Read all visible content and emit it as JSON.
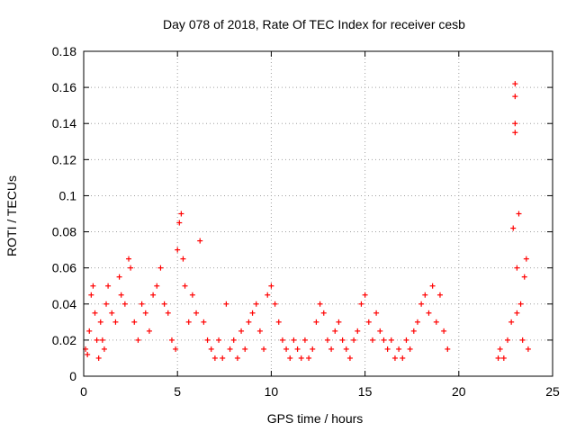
{
  "chart_data": {
    "type": "scatter",
    "title": "Day 078 of 2018, Rate Of TEC Index for receiver cesb",
    "xlabel": "GPS time / hours",
    "ylabel": "ROTI / TECUs",
    "xlim": [
      0,
      25
    ],
    "ylim": [
      0,
      0.18
    ],
    "xticks": [
      0,
      5,
      10,
      15,
      20,
      25
    ],
    "yticks": [
      0,
      0.02,
      0.04,
      0.06,
      0.08,
      0.1,
      0.12,
      0.14,
      0.16,
      0.18
    ],
    "xtick_labels": [
      "0",
      "5",
      "10",
      "15",
      "20",
      "25"
    ],
    "ytick_labels": [
      "0",
      "0.02",
      "0.04",
      "0.06",
      "0.08",
      "0.1",
      "0.12",
      "0.14",
      "0.16",
      "0.18"
    ],
    "grid": true,
    "marker": "+",
    "color": "#ff0000",
    "series": [
      {
        "name": "ROTI",
        "points": [
          [
            0.1,
            0.015
          ],
          [
            0.2,
            0.012
          ],
          [
            0.3,
            0.025
          ],
          [
            0.4,
            0.045
          ],
          [
            0.5,
            0.05
          ],
          [
            0.6,
            0.035
          ],
          [
            0.7,
            0.02
          ],
          [
            0.8,
            0.01
          ],
          [
            0.9,
            0.03
          ],
          [
            1.0,
            0.02
          ],
          [
            1.1,
            0.015
          ],
          [
            1.2,
            0.04
          ],
          [
            1.3,
            0.05
          ],
          [
            1.5,
            0.035
          ],
          [
            1.7,
            0.03
          ],
          [
            1.9,
            0.055
          ],
          [
            2.0,
            0.045
          ],
          [
            2.2,
            0.04
          ],
          [
            2.4,
            0.065
          ],
          [
            2.5,
            0.06
          ],
          [
            2.7,
            0.03
          ],
          [
            2.9,
            0.02
          ],
          [
            3.1,
            0.04
          ],
          [
            3.3,
            0.035
          ],
          [
            3.5,
            0.025
          ],
          [
            3.7,
            0.045
          ],
          [
            3.9,
            0.05
          ],
          [
            4.1,
            0.06
          ],
          [
            4.3,
            0.04
          ],
          [
            4.5,
            0.035
          ],
          [
            4.7,
            0.02
          ],
          [
            4.9,
            0.015
          ],
          [
            5.0,
            0.07
          ],
          [
            5.1,
            0.085
          ],
          [
            5.2,
            0.09
          ],
          [
            5.3,
            0.065
          ],
          [
            5.4,
            0.05
          ],
          [
            5.6,
            0.03
          ],
          [
            5.8,
            0.045
          ],
          [
            6.0,
            0.035
          ],
          [
            6.2,
            0.075
          ],
          [
            6.4,
            0.03
          ],
          [
            6.6,
            0.02
          ],
          [
            6.8,
            0.015
          ],
          [
            7.0,
            0.01
          ],
          [
            7.2,
            0.02
          ],
          [
            7.4,
            0.01
          ],
          [
            7.6,
            0.04
          ],
          [
            7.8,
            0.015
          ],
          [
            8.0,
            0.02
          ],
          [
            8.2,
            0.01
          ],
          [
            8.4,
            0.025
          ],
          [
            8.6,
            0.015
          ],
          [
            8.8,
            0.03
          ],
          [
            9.0,
            0.035
          ],
          [
            9.2,
            0.04
          ],
          [
            9.4,
            0.025
          ],
          [
            9.6,
            0.015
          ],
          [
            9.8,
            0.045
          ],
          [
            10.0,
            0.05
          ],
          [
            10.2,
            0.04
          ],
          [
            10.4,
            0.03
          ],
          [
            10.6,
            0.02
          ],
          [
            10.8,
            0.015
          ],
          [
            11.0,
            0.01
          ],
          [
            11.2,
            0.02
          ],
          [
            11.4,
            0.015
          ],
          [
            11.6,
            0.01
          ],
          [
            11.8,
            0.02
          ],
          [
            12.0,
            0.01
          ],
          [
            12.2,
            0.015
          ],
          [
            12.4,
            0.03
          ],
          [
            12.6,
            0.04
          ],
          [
            12.8,
            0.035
          ],
          [
            13.0,
            0.02
          ],
          [
            13.2,
            0.015
          ],
          [
            13.4,
            0.025
          ],
          [
            13.6,
            0.03
          ],
          [
            13.8,
            0.02
          ],
          [
            14.0,
            0.015
          ],
          [
            14.2,
            0.01
          ],
          [
            14.4,
            0.02
          ],
          [
            14.6,
            0.025
          ],
          [
            14.8,
            0.04
          ],
          [
            15.0,
            0.045
          ],
          [
            15.2,
            0.03
          ],
          [
            15.4,
            0.02
          ],
          [
            15.6,
            0.035
          ],
          [
            15.8,
            0.025
          ],
          [
            16.0,
            0.02
          ],
          [
            16.2,
            0.015
          ],
          [
            16.4,
            0.02
          ],
          [
            16.6,
            0.01
          ],
          [
            16.8,
            0.015
          ],
          [
            17.0,
            0.01
          ],
          [
            17.2,
            0.02
          ],
          [
            17.4,
            0.015
          ],
          [
            17.6,
            0.025
          ],
          [
            17.8,
            0.03
          ],
          [
            18.0,
            0.04
          ],
          [
            18.2,
            0.045
          ],
          [
            18.4,
            0.035
          ],
          [
            18.6,
            0.05
          ],
          [
            18.8,
            0.03
          ],
          [
            19.0,
            0.045
          ],
          [
            19.2,
            0.025
          ],
          [
            19.4,
            0.015
          ],
          [
            22.1,
            0.01
          ],
          [
            22.2,
            0.015
          ],
          [
            22.4,
            0.01
          ],
          [
            22.6,
            0.02
          ],
          [
            22.8,
            0.03
          ],
          [
            23.0,
            0.162
          ],
          [
            23.0,
            0.155
          ],
          [
            23.0,
            0.14
          ],
          [
            23.0,
            0.135
          ],
          [
            23.1,
            0.035
          ],
          [
            23.2,
            0.09
          ],
          [
            23.3,
            0.04
          ],
          [
            23.4,
            0.02
          ],
          [
            23.5,
            0.055
          ],
          [
            23.6,
            0.065
          ],
          [
            23.7,
            0.015
          ],
          [
            22.9,
            0.082
          ],
          [
            23.1,
            0.06
          ]
        ]
      }
    ]
  }
}
